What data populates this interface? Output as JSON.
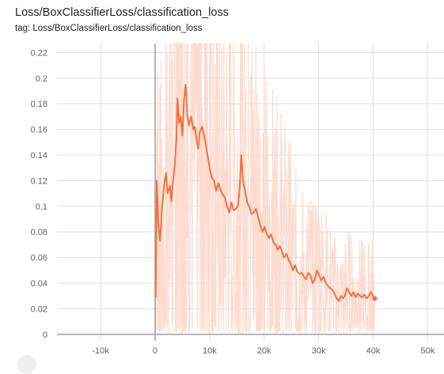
{
  "chart_data": {
    "type": "line",
    "title": "Loss/BoxClassifierLoss/classification_loss",
    "subtitle": "tag: Loss/BoxClassifierLoss/classification_loss",
    "xlabel": "",
    "ylabel": "",
    "xlim": [
      -18000,
      53000
    ],
    "ylim": [
      -0.005,
      0.227
    ],
    "x_ticks": [
      -10000,
      0,
      10000,
      20000,
      30000,
      40000,
      50000
    ],
    "x_tick_labels": [
      "-10k",
      "0",
      "10k",
      "20k",
      "30k",
      "40k",
      "50k"
    ],
    "y_ticks": [
      0,
      0.02,
      0.04,
      0.06,
      0.08,
      0.1,
      0.12,
      0.14,
      0.16,
      0.18,
      0.2,
      0.22
    ],
    "y_tick_labels": [
      "0",
      "0.02",
      "0.04",
      "0.06",
      "0.08",
      "0.1",
      "0.12",
      "0.14",
      "0.16",
      "0.18",
      "0.2",
      "0.22"
    ],
    "grid": true,
    "colors": {
      "smoothed": "#f4703b",
      "raw": "#fddbcf",
      "grid": "#e0e0e0",
      "axis": "#9e9e9e"
    },
    "series": [
      {
        "values": [
          [
            100,
            0.029
          ],
          [
            300,
            0.12
          ],
          [
            600,
            0.085
          ],
          [
            900,
            0.073
          ],
          [
            1300,
            0.1
          ],
          [
            1700,
            0.118
          ],
          [
            2000,
            0.126
          ],
          [
            2300,
            0.11
          ],
          [
            2700,
            0.116
          ],
          [
            3000,
            0.104
          ],
          [
            3300,
            0.12
          ],
          [
            3600,
            0.132
          ],
          [
            3900,
            0.152
          ],
          [
            4100,
            0.184
          ],
          [
            4400,
            0.165
          ],
          [
            4700,
            0.17
          ],
          [
            5000,
            0.155
          ],
          [
            5300,
            0.183
          ],
          [
            5600,
            0.195
          ],
          [
            5900,
            0.172
          ],
          [
            6200,
            0.163
          ],
          [
            6600,
            0.17
          ],
          [
            7000,
            0.16
          ],
          [
            7300,
            0.162
          ],
          [
            7600,
            0.152
          ],
          [
            7900,
            0.145
          ],
          [
            8200,
            0.158
          ],
          [
            8600,
            0.162
          ],
          [
            9000,
            0.155
          ],
          [
            9300,
            0.148
          ],
          [
            9700,
            0.138
          ],
          [
            10000,
            0.13
          ],
          [
            10400,
            0.122
          ],
          [
            10800,
            0.12
          ],
          [
            11200,
            0.112
          ],
          [
            11600,
            0.118
          ],
          [
            12000,
            0.113
          ],
          [
            12400,
            0.109
          ],
          [
            12800,
            0.107
          ],
          [
            13200,
            0.1
          ],
          [
            13600,
            0.095
          ],
          [
            14000,
            0.103
          ],
          [
            14400,
            0.097
          ],
          [
            14800,
            0.098
          ],
          [
            15200,
            0.1
          ],
          [
            15500,
            0.113
          ],
          [
            15800,
            0.14
          ],
          [
            16100,
            0.12
          ],
          [
            16500,
            0.112
          ],
          [
            16900,
            0.103
          ],
          [
            17300,
            0.099
          ],
          [
            17700,
            0.094
          ],
          [
            18100,
            0.095
          ],
          [
            18500,
            0.098
          ],
          [
            18900,
            0.092
          ],
          [
            19300,
            0.085
          ],
          [
            19700,
            0.08
          ],
          [
            20100,
            0.084
          ],
          [
            20500,
            0.078
          ],
          [
            20900,
            0.075
          ],
          [
            21300,
            0.078
          ],
          [
            21700,
            0.072
          ],
          [
            22100,
            0.07
          ],
          [
            22500,
            0.066
          ],
          [
            22900,
            0.069
          ],
          [
            23300,
            0.064
          ],
          [
            23700,
            0.06
          ],
          [
            24100,
            0.063
          ],
          [
            24500,
            0.058
          ],
          [
            24900,
            0.055
          ],
          [
            25300,
            0.05
          ],
          [
            25700,
            0.054
          ],
          [
            26100,
            0.049
          ],
          [
            26500,
            0.047
          ],
          [
            26900,
            0.048
          ],
          [
            27300,
            0.045
          ],
          [
            27700,
            0.043
          ],
          [
            28100,
            0.048
          ],
          [
            28500,
            0.046
          ],
          [
            28900,
            0.04
          ],
          [
            29300,
            0.043
          ],
          [
            29700,
            0.05
          ],
          [
            30100,
            0.046
          ],
          [
            30500,
            0.042
          ],
          [
            30900,
            0.045
          ],
          [
            31300,
            0.04
          ],
          [
            31700,
            0.038
          ],
          [
            32100,
            0.036
          ],
          [
            32500,
            0.035
          ],
          [
            32900,
            0.032
          ],
          [
            33300,
            0.028
          ],
          [
            33700,
            0.026
          ],
          [
            34100,
            0.03
          ],
          [
            34500,
            0.028
          ],
          [
            34900,
            0.031
          ],
          [
            35200,
            0.036
          ],
          [
            35600,
            0.033
          ],
          [
            36000,
            0.03
          ],
          [
            36400,
            0.033
          ],
          [
            36800,
            0.029
          ],
          [
            37200,
            0.032
          ],
          [
            37600,
            0.03
          ],
          [
            38000,
            0.029
          ],
          [
            38400,
            0.031
          ],
          [
            38800,
            0.028
          ],
          [
            39200,
            0.03
          ],
          [
            39600,
            0.033
          ],
          [
            40000,
            0.03
          ],
          [
            40300,
            0.028
          ]
        ]
      }
    ]
  }
}
